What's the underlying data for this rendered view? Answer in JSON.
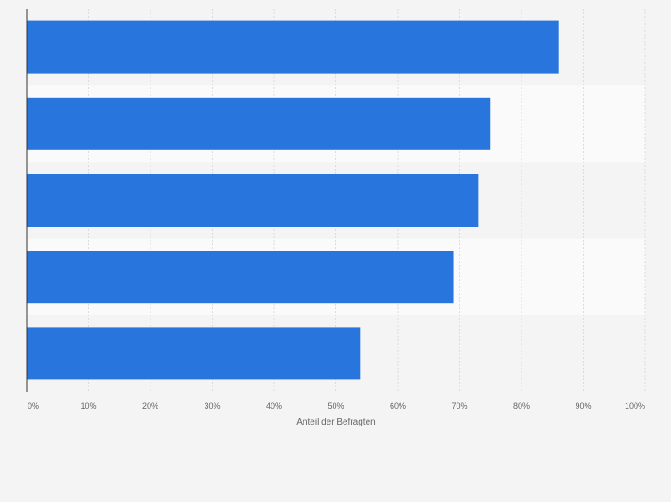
{
  "chart_data": {
    "type": "bar",
    "orientation": "horizontal",
    "categories": [
      "",
      "",
      "",
      "",
      ""
    ],
    "values": [
      86,
      75,
      73,
      69,
      54
    ],
    "value_unit": "%",
    "title": "",
    "xlabel": "Anteil der Befragten",
    "ylabel": "",
    "xlim": [
      0,
      100
    ],
    "x_ticks": [
      "0%",
      "10%",
      "20%",
      "30%",
      "40%",
      "50%",
      "60%",
      "70%",
      "80%",
      "90%",
      "100%"
    ],
    "grid": true,
    "legend": "none",
    "colors": {
      "bar": "#2876dd",
      "background": "#f4f4f4",
      "band": "#fafafa",
      "grid": "#dcdcdc",
      "axis": "#333333",
      "tick_text": "#666666"
    }
  }
}
